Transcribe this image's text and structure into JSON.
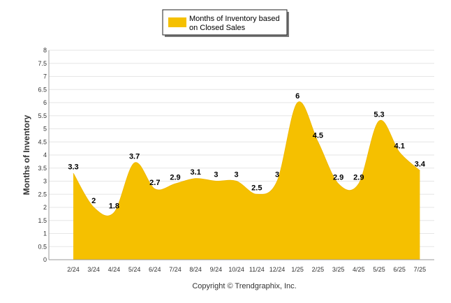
{
  "chart_data": {
    "type": "area",
    "title": "",
    "xlabel": "",
    "ylabel": "Months of Inventory",
    "categories": [
      "2/24",
      "3/24",
      "4/24",
      "5/24",
      "6/24",
      "7/24",
      "8/24",
      "9/24",
      "10/24",
      "11/24",
      "12/24",
      "1/25",
      "2/25",
      "3/25",
      "4/25",
      "5/25",
      "6/25",
      "7/25"
    ],
    "series": [
      {
        "name": "Months of Inventory based on Closed Sales",
        "values": [
          3.3,
          2,
          1.8,
          3.7,
          2.7,
          2.9,
          3.1,
          3,
          3,
          2.5,
          3,
          6,
          4.5,
          2.9,
          2.9,
          5.3,
          4.1,
          3.4
        ],
        "color": "#F5C000"
      }
    ],
    "ylim": [
      0,
      8
    ],
    "yticks": [
      "0",
      "0.5",
      "1",
      "1.5",
      "2",
      "2.5",
      "3",
      "3.5",
      "4",
      "4.5",
      "5",
      "5.5",
      "6",
      "6.5",
      "7",
      "7.5",
      "8"
    ],
    "grid": true,
    "legend_position": "top-center"
  },
  "legend": {
    "line1": "Months of Inventory based",
    "line2": "on Closed Sales"
  },
  "footer": {
    "copyright": "Copyright © Trendgraphix, Inc."
  }
}
